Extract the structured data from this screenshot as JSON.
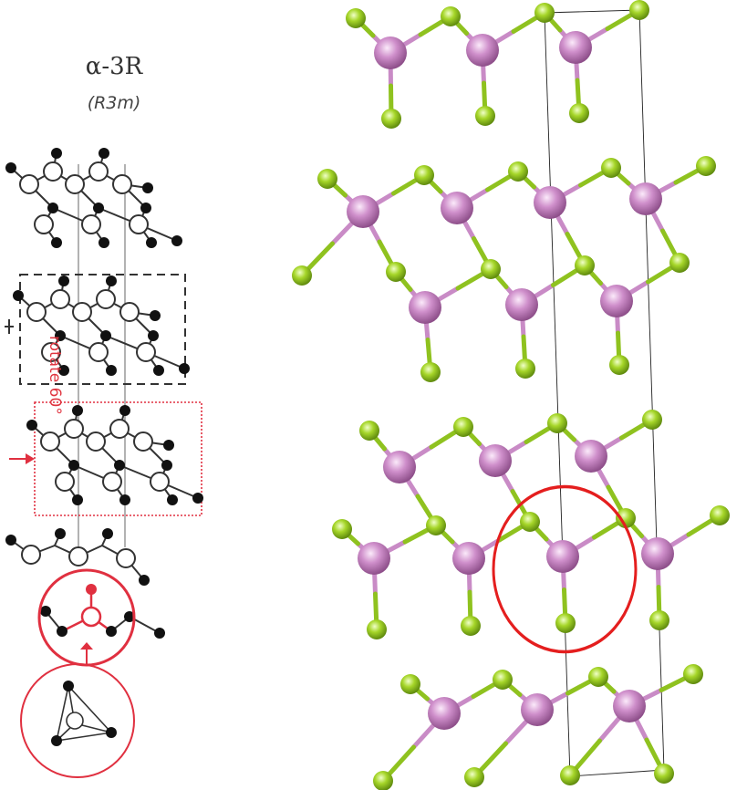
{
  "left_panel": {
    "title": "α-3R",
    "subtitle": "(R3m)",
    "rotate_label": "rotate 60°"
  },
  "colors": {
    "black_atom": "#111111",
    "white_atom": "#ffffff",
    "bond": "#333333",
    "highlight": "#e03040",
    "pink_atom": "#c98bc6",
    "green_atom": "#9bd12a"
  },
  "right_panel": {
    "description_icons": [
      "pink-atom",
      "green-atom"
    ]
  }
}
